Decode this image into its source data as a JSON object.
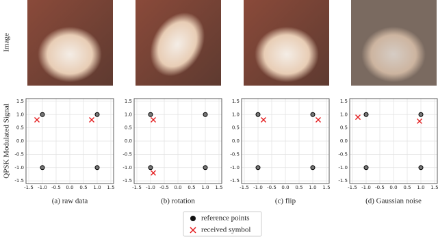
{
  "row_labels": [
    "Image",
    "QPSK Modulated Signal"
  ],
  "chart_data": [
    {
      "type": "scatter",
      "caption": "(a) raw data",
      "xlim": [
        -1.6,
        1.6
      ],
      "ylim": [
        -1.6,
        1.6
      ],
      "xticks": [
        -1.5,
        {
          "value": -1,
          "label": "-1.0"
        },
        -0.5,
        {
          "value": 0,
          "label": "0.0"
        },
        0.5,
        {
          "value": 1,
          "label": "1.0"
        },
        1.5
      ],
      "yticks": [
        -1.5,
        {
          "value": -1,
          "label": "-1.0"
        },
        -0.5,
        {
          "value": 0,
          "label": "0.0"
        },
        0.5,
        {
          "value": 1,
          "label": "1.0"
        },
        1.5
      ],
      "grid": true,
      "series": [
        {
          "name": "reference points",
          "color": "#000000",
          "marker": "circle",
          "x": [
            -1,
            1,
            -1,
            1
          ],
          "values": [
            1,
            1,
            -1,
            -1
          ]
        },
        {
          "name": "received symbol",
          "color": "#e41a1c",
          "marker": "x",
          "x": [
            -1.2,
            0.8
          ],
          "values": [
            0.8,
            0.8
          ]
        }
      ]
    },
    {
      "type": "scatter",
      "caption": "(b) rotation",
      "xlim": [
        -1.6,
        1.6
      ],
      "ylim": [
        -1.6,
        1.6
      ],
      "xticks": [
        -1.5,
        {
          "value": -1,
          "label": "-1.0"
        },
        -0.5,
        {
          "value": 0,
          "label": "0.0"
        },
        0.5,
        {
          "value": 1,
          "label": "1.0"
        },
        1.5
      ],
      "yticks": [
        -1.5,
        {
          "value": -1,
          "label": "-1.0"
        },
        -0.5,
        {
          "value": 0,
          "label": "0.0"
        },
        0.5,
        {
          "value": 1,
          "label": "1.0"
        },
        1.5
      ],
      "grid": true,
      "series": [
        {
          "name": "reference points",
          "color": "#000000",
          "marker": "circle",
          "x": [
            -1,
            1,
            -1,
            1
          ],
          "values": [
            1,
            1,
            -1,
            -1
          ]
        },
        {
          "name": "received symbol",
          "color": "#e41a1c",
          "marker": "x",
          "x": [
            -0.9,
            -0.9
          ],
          "values": [
            0.8,
            -1.2
          ]
        }
      ]
    },
    {
      "type": "scatter",
      "caption": "(c) flip",
      "xlim": [
        -1.6,
        1.6
      ],
      "ylim": [
        -1.6,
        1.6
      ],
      "xticks": [
        -1.5,
        {
          "value": -1,
          "label": "-1.0"
        },
        -0.5,
        {
          "value": 0,
          "label": "0.0"
        },
        0.5,
        {
          "value": 1,
          "label": "1.0"
        },
        1.5
      ],
      "yticks": [
        -1.5,
        {
          "value": -1,
          "label": "-1.0"
        },
        -0.5,
        {
          "value": 0,
          "label": "0.0"
        },
        0.5,
        {
          "value": 1,
          "label": "1.0"
        },
        1.5
      ],
      "grid": true,
      "series": [
        {
          "name": "reference points",
          "color": "#000000",
          "marker": "circle",
          "x": [
            -1,
            1,
            -1,
            1
          ],
          "values": [
            1,
            1,
            -1,
            -1
          ]
        },
        {
          "name": "received symbol",
          "color": "#e41a1c",
          "marker": "x",
          "x": [
            -0.8,
            1.2
          ],
          "values": [
            0.8,
            0.8
          ]
        }
      ]
    },
    {
      "type": "scatter",
      "caption": "(d) Gaussian noise",
      "xlim": [
        -1.6,
        1.6
      ],
      "ylim": [
        -1.6,
        1.6
      ],
      "xticks": [
        -1.5,
        {
          "value": -1,
          "label": "-1.0"
        },
        -0.5,
        {
          "value": 0,
          "label": "0.0"
        },
        0.5,
        {
          "value": 1,
          "label": "1.0"
        },
        1.5
      ],
      "yticks": [
        -1.5,
        {
          "value": -1,
          "label": "-1.0"
        },
        -0.5,
        {
          "value": 0,
          "label": "0.0"
        },
        0.5,
        {
          "value": 1,
          "label": "1.0"
        },
        1.5
      ],
      "grid": true,
      "series": [
        {
          "name": "reference points",
          "color": "#000000",
          "marker": "circle",
          "x": [
            -1,
            1,
            -1,
            1
          ],
          "values": [
            1,
            1,
            -1,
            -1
          ]
        },
        {
          "name": "received symbol",
          "color": "#e41a1c",
          "marker": "x",
          "x": [
            -1.3,
            0.95
          ],
          "values": [
            0.9,
            0.75
          ]
        }
      ]
    }
  ]
}
